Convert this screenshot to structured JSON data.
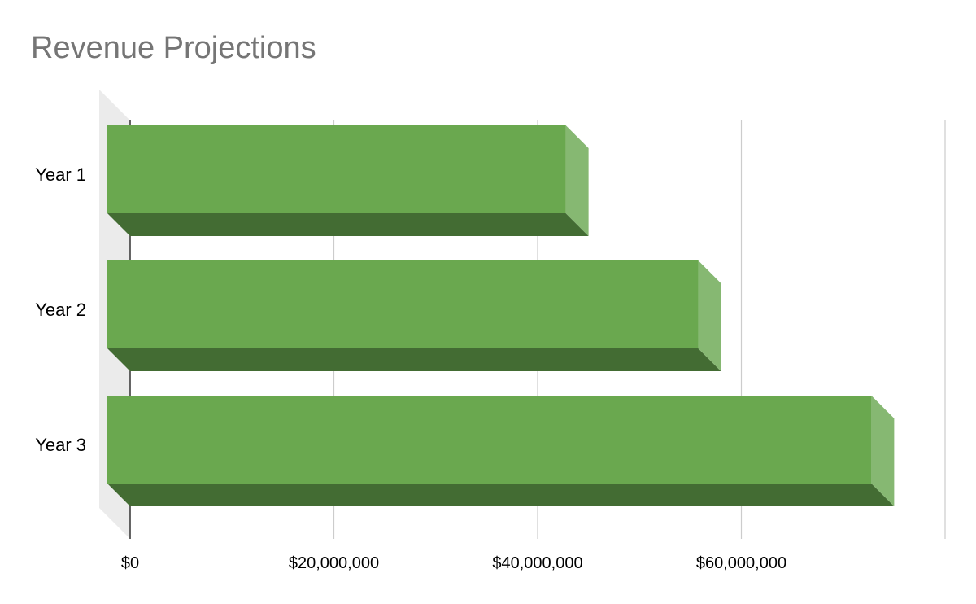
{
  "chart_data": {
    "type": "bar",
    "orientation": "horizontal",
    "style": "3d",
    "title": "Revenue Projections",
    "xlabel": "",
    "ylabel": "",
    "categories": [
      "Year 1",
      "Year 2",
      "Year 3"
    ],
    "values": [
      45000000,
      58000000,
      75000000
    ],
    "xlim": [
      0,
      80000000
    ],
    "x_ticks": [
      0,
      20000000,
      40000000,
      60000000
    ],
    "x_tick_labels": [
      "$0",
      "$20,000,000",
      "$40,000,000",
      "$60,000,000"
    ],
    "grid": true,
    "legend": "none",
    "colors": {
      "bar_front": "#6aa84f",
      "bar_end": "#86b872",
      "bar_bottom": "#436c33",
      "gridline": "#cccccc",
      "wall": "#ebebeb",
      "title": "#757575"
    }
  }
}
